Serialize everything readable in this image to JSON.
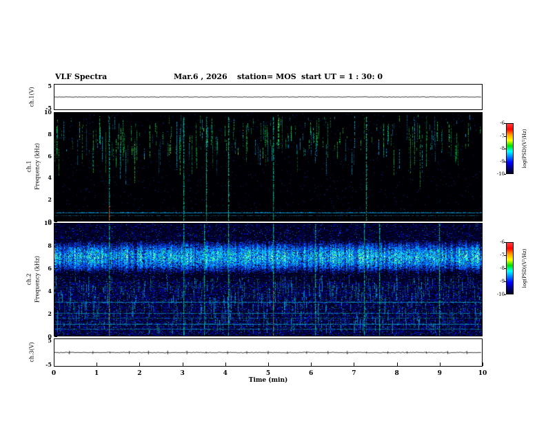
{
  "header": {
    "title": "VLF Spectra",
    "date": "Mar.6 , 2026",
    "station": "station= MOS",
    "start_ut": "start UT =  1 : 30: 0"
  },
  "x_axis": {
    "label": "Time (min)",
    "tick_labels": [
      "0",
      "1",
      "2",
      "3",
      "4",
      "5",
      "6",
      "7",
      "8",
      "9",
      "10"
    ],
    "range_min": [
      0,
      10
    ]
  },
  "panels": {
    "wave1": {
      "ylabel": "ch.1(V)",
      "ytop": "5",
      "ybottom": "-5"
    },
    "spec1": {
      "channel_label": "ch.1",
      "ylabel": "Frequency (kHz)",
      "tick_labels": [
        "10",
        "8",
        "6",
        "4",
        "2",
        "0"
      ]
    },
    "spec2": {
      "channel_label": "ch.2",
      "ylabel": "Frequency (kHz)",
      "tick_labels": [
        "10",
        "8",
        "6",
        "4",
        "2",
        "0"
      ]
    },
    "wave3": {
      "ylabel": "ch.3(V)",
      "ytop": "5",
      "ybottom": "-5"
    }
  },
  "colorbars": [
    {
      "label": "log(PSD)(V²/Hz)",
      "tick_labels": [
        "-6",
        "-7",
        "-8",
        "-9",
        "-10"
      ],
      "colors": [
        "#ff4040",
        "#ff0000",
        "#ffa000",
        "#ffff00",
        "#00e000",
        "#00ffff",
        "#0080ff",
        "#0000ff",
        "#000080",
        "#000020"
      ]
    },
    {
      "label": "log(PSD)(V²/Hz)",
      "tick_labels": [
        "-6",
        "-7",
        "-8",
        "-9",
        "-10"
      ],
      "colors": [
        "#ff4040",
        "#ff0000",
        "#ffa000",
        "#ffff00",
        "#00e000",
        "#00ffff",
        "#0080ff",
        "#0000ff",
        "#000080",
        "#000020"
      ]
    }
  ],
  "chart_data": [
    {
      "id": "ch1-waveform",
      "type": "line",
      "ylabel": "ch.1(V)",
      "xlabel": "Time (min)",
      "xlim": [
        0,
        10
      ],
      "ylim": [
        -5,
        5
      ],
      "baseline_v": 0,
      "noise_amp_v": 0.12,
      "spike_amp_v": 0.3,
      "spike_times_min": [],
      "description": "nearly flat trace at 0 V across full 10 minutes"
    },
    {
      "id": "ch1-spectrogram",
      "type": "heatmap",
      "channel": "ch.1",
      "ylabel": "Frequency (kHz)",
      "xlabel": "Time (min)",
      "xlim": [
        0,
        10
      ],
      "ylim": [
        0,
        10
      ],
      "zlabel": "log(PSD)(V²/Hz)",
      "zlim": [
        -10,
        -6
      ],
      "background_level": -10,
      "horizontal_lines": [
        {
          "freq_khz": 0.75,
          "strength": 0.95,
          "density": 0.92
        },
        {
          "freq_khz": 0.45,
          "strength": 0.55,
          "density": 0.6
        }
      ],
      "sferics": {
        "count": 280,
        "top_khz": [
          6.5,
          9.8
        ],
        "max_len_khz": 4.5,
        "colors": [
          "green",
          "cyan"
        ]
      },
      "strong_streak_times_min": [
        {
          "t": 1.28,
          "hot": true
        },
        {
          "t": 3.02,
          "hot": false
        },
        {
          "t": 3.55,
          "hot": false
        },
        {
          "t": 4.08,
          "hot": false
        },
        {
          "t": 5.12,
          "hot": false
        },
        {
          "t": 7.3,
          "hot": false
        }
      ],
      "description": "mostly black background with sparse impulsive vertical sferic streaks between ~5 and 9.8 kHz, bright cyan horizontal line near 0.7 kHz"
    },
    {
      "id": "ch2-spectrogram",
      "type": "heatmap",
      "channel": "ch.2",
      "ylabel": "Frequency (kHz)",
      "xlabel": "Time (min)",
      "xlim": [
        0,
        10
      ],
      "ylim": [
        0,
        10
      ],
      "zlabel": "log(PSD)(V²/Hz)",
      "zlim": [
        -10,
        -6
      ],
      "band": {
        "center_khz": 7.05,
        "width_khz": 1.15,
        "range_khz": [
          5.0,
          9.0
        ]
      },
      "horizontal_lines": [
        {
          "freq_khz": 4.35,
          "strength": 0.4,
          "density": 0.5
        },
        {
          "freq_khz": 3.0,
          "strength": 0.9,
          "density": 0.9
        },
        {
          "freq_khz": 2.0,
          "strength": 0.8,
          "density": 0.85
        },
        {
          "freq_khz": 1.55,
          "strength": 0.6,
          "density": 0.7
        },
        {
          "freq_khz": 1.0,
          "strength": 0.9,
          "density": 0.9
        },
        {
          "freq_khz": 0.6,
          "strength": 0.75,
          "density": 0.8
        }
      ],
      "strong_streak_times_min": [
        {
          "t": 1.28,
          "hot": true
        },
        {
          "t": 3.02,
          "hot": false
        },
        {
          "t": 3.5,
          "hot": false
        },
        {
          "t": 4.08,
          "hot": false
        },
        {
          "t": 5.12,
          "hot": true
        },
        {
          "t": 6.1,
          "hot": false
        },
        {
          "t": 7.25,
          "hot": false
        },
        {
          "t": 7.6,
          "hot": false
        },
        {
          "t": 9.0,
          "hot": false
        }
      ],
      "description": "dense broadband blue noise everywhere; bright mottled cyan-green band ~5.5-8.5 kHz; several cyan horizontal carrier lines below 4.5 kHz; occasional full-height streaks with red-orange hot spots"
    },
    {
      "id": "ch3-waveform",
      "type": "line",
      "ylabel": "ch.3(V)",
      "xlabel": "Time (min)",
      "xlim": [
        0,
        10
      ],
      "ylim": [
        -5,
        5
      ],
      "baseline_v": 0,
      "noise_amp_v": 0.15,
      "spike_amp_v": 0.7,
      "spike_times_min": [
        0.35,
        0.9,
        1.3,
        1.75,
        2.2,
        2.65,
        3.1,
        3.55,
        4.05,
        4.5,
        5.0,
        5.45,
        5.9,
        6.4,
        6.85,
        7.3,
        7.8,
        8.25,
        8.7,
        9.2,
        9.65
      ],
      "description": "flat trace at 0 V with small periodic blips"
    }
  ]
}
